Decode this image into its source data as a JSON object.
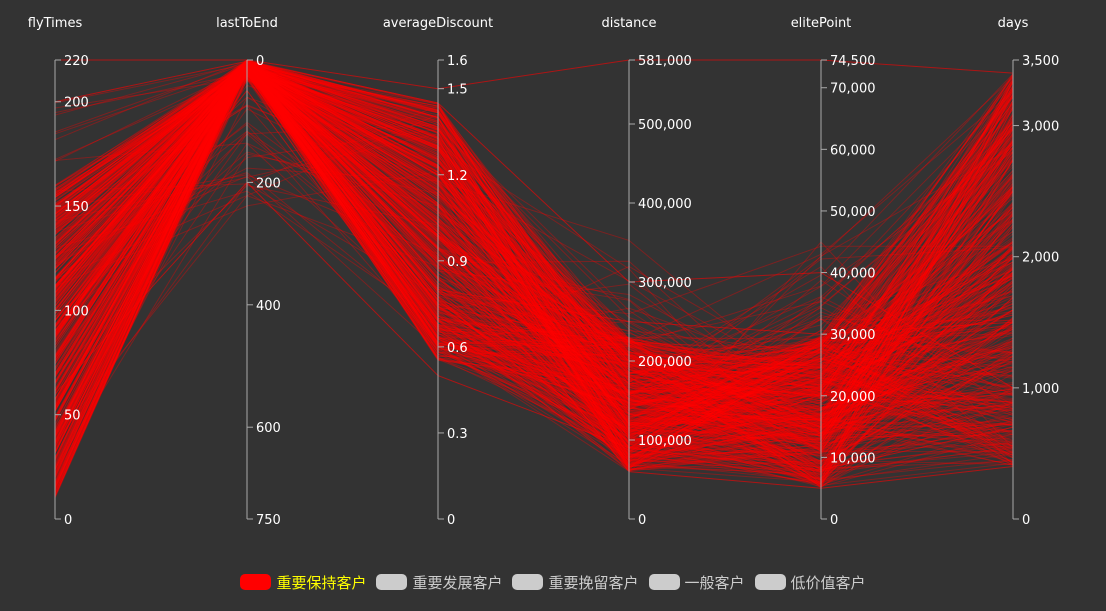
{
  "chart_data": {
    "type": "parallel",
    "background": "#333333",
    "axes": [
      {
        "name": "flyTimes",
        "min": 0,
        "max": 220,
        "inverse": false,
        "ticks": [
          0,
          50,
          100,
          150,
          200,
          220
        ],
        "tick_labels": [
          "0",
          "50",
          "100",
          "150",
          "200",
          "220"
        ]
      },
      {
        "name": "lastToEnd",
        "min": 0,
        "max": 750,
        "inverse": true,
        "ticks": [
          0,
          200,
          400,
          600,
          750
        ],
        "tick_labels": [
          "0",
          "200",
          "400",
          "600",
          "750"
        ]
      },
      {
        "name": "averageDiscount",
        "min": 0,
        "max": 1.6,
        "inverse": false,
        "ticks": [
          0,
          0.3,
          0.6,
          0.9,
          1.2,
          1.5,
          1.6
        ],
        "tick_labels": [
          "0",
          "0.3",
          "0.6",
          "0.9",
          "1.2",
          "1.5",
          "1.6"
        ]
      },
      {
        "name": "distance",
        "min": 0,
        "max": 581000,
        "inverse": false,
        "ticks": [
          0,
          100000,
          200000,
          300000,
          400000,
          500000,
          581000
        ],
        "tick_labels": [
          "0",
          "100,000",
          "200,000",
          "300,000",
          "400,000",
          "500,000",
          "581,000"
        ]
      },
      {
        "name": "elitePoint",
        "min": 0,
        "max": 74500,
        "inverse": false,
        "ticks": [
          0,
          10000,
          20000,
          30000,
          40000,
          50000,
          60000,
          70000,
          74500
        ],
        "tick_labels": [
          "0",
          "10,000",
          "20,000",
          "30,000",
          "40,000",
          "50,000",
          "60,000",
          "70,000",
          "74,500"
        ]
      },
      {
        "name": "days",
        "min": 0,
        "max": 3500,
        "inverse": false,
        "ticks": [
          0,
          1000,
          2000,
          3000,
          3500
        ],
        "tick_labels": [
          "0",
          "1,000",
          "2,000",
          "3,000",
          "3,500"
        ]
      }
    ],
    "series": [
      {
        "name": "重要保持客户",
        "color": "#ff0000",
        "visible": true
      },
      {
        "name": "重要发展客户",
        "color": "#cccccc",
        "visible": false
      },
      {
        "name": "重要挽留客户",
        "color": "#cccccc",
        "visible": false
      },
      {
        "name": "一般客户",
        "color": "#cccccc",
        "visible": false
      },
      {
        "name": "低价值客户",
        "color": "#cccccc",
        "visible": false
      }
    ],
    "sample_lines": [
      [
        15,
        0,
        1.0,
        60000,
        5000,
        400
      ],
      [
        40,
        5,
        1.2,
        120000,
        12000,
        2500
      ],
      [
        70,
        10,
        0.9,
        150000,
        15000,
        3000
      ],
      [
        100,
        3,
        0.7,
        180000,
        20000,
        3300
      ],
      [
        120,
        15,
        1.3,
        200000,
        25000,
        2000
      ],
      [
        150,
        8,
        0.8,
        250000,
        30000,
        1500
      ],
      [
        200,
        2,
        1.45,
        300000,
        40000,
        1000
      ],
      [
        220,
        0,
        1.5,
        581000,
        74500,
        3400
      ],
      [
        60,
        200,
        0.5,
        90000,
        8000,
        700
      ],
      [
        90,
        50,
        0.6,
        140000,
        16000,
        2800
      ]
    ],
    "legend_selected_color": "#ffff00",
    "legend_unselected_color": "#cccccc"
  }
}
